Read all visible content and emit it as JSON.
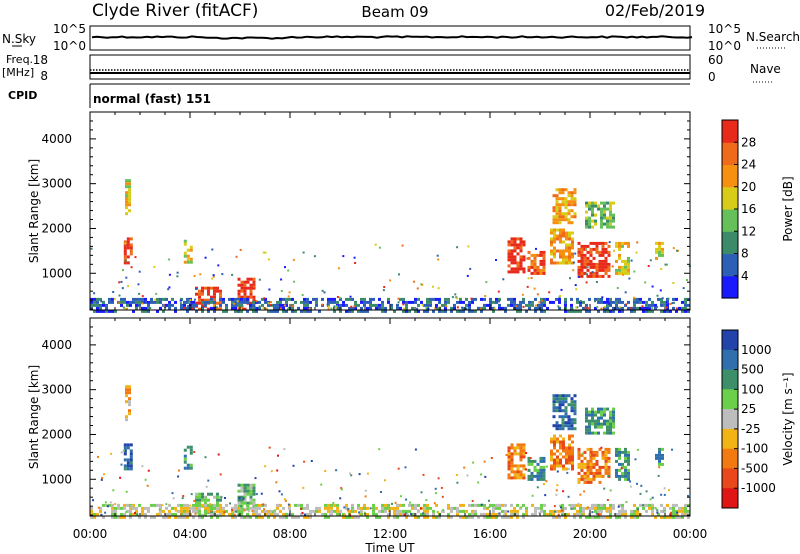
{
  "header": {
    "station": "Clyde River (fitACF)",
    "beam": "Beam 09",
    "date": "02/Feb/2019"
  },
  "panels": {
    "nsky": {
      "left_label": "N.Sky",
      "left_ticks": [
        "10^5",
        "10^0"
      ],
      "right_ticks": [
        "10^5",
        "10^0"
      ],
      "right_label": "N.Search"
    },
    "freq": {
      "left_label_1": "Freq.",
      "left_label_2": "[MHz]",
      "left_ticks": [
        "18",
        "8"
      ],
      "right_ticks": [
        "60",
        "0"
      ],
      "right_label": "Nave"
    },
    "cpid": {
      "label": "CPID",
      "mode": "normal (fast) 151"
    }
  },
  "chart_data": [
    {
      "type": "heatmap",
      "quantity": "Power",
      "ylabel": "Slant Range [km]",
      "xlabel": "Time UT",
      "ylim": [
        180,
        4600
      ],
      "yticks": [
        1000,
        2000,
        3000,
        4000
      ],
      "x_ticks": [
        "00:00",
        "04:00",
        "08:00",
        "12:00",
        "16:00",
        "20:00",
        "00:00"
      ],
      "colorbar": {
        "label": "Power [dB]",
        "ticks": [
          "4",
          "8",
          "12",
          "16",
          "20",
          "24",
          "28"
        ],
        "colors": [
          "#1a1aff",
          "#2c5fb5",
          "#3b8a6a",
          "#66c05a",
          "#d8cc18",
          "#f59010",
          "#ef6a1a",
          "#e82a1a"
        ]
      },
      "echo_regions": [
        {
          "t_start": 1.35,
          "t_end": 1.7,
          "range_min": 1200,
          "range_max": 1800,
          "level": 7
        },
        {
          "t_start": 1.4,
          "t_end": 1.6,
          "range_min": 2300,
          "range_max": 3100,
          "level": 4
        },
        {
          "t_start": 3.75,
          "t_end": 4.05,
          "range_min": 1250,
          "range_max": 1750,
          "level": 4
        },
        {
          "t_start": 4.2,
          "t_end": 5.2,
          "range_min": 180,
          "range_max": 700,
          "level": 7
        },
        {
          "t_start": 5.9,
          "t_end": 6.6,
          "range_min": 180,
          "range_max": 900,
          "level": 7
        },
        {
          "t_start": 16.7,
          "t_end": 17.4,
          "range_min": 1000,
          "range_max": 1800,
          "level": 7
        },
        {
          "t_start": 17.5,
          "t_end": 18.2,
          "range_min": 1000,
          "range_max": 1500,
          "level": 6
        },
        {
          "t_start": 18.5,
          "t_end": 19.4,
          "range_min": 2100,
          "range_max": 2900,
          "level": 5
        },
        {
          "t_start": 18.4,
          "t_end": 19.3,
          "range_min": 1200,
          "range_max": 2000,
          "level": 5
        },
        {
          "t_start": 19.5,
          "t_end": 20.8,
          "range_min": 900,
          "range_max": 1700,
          "level": 7
        },
        {
          "t_start": 19.8,
          "t_end": 20.9,
          "range_min": 2000,
          "range_max": 2600,
          "level": 3
        },
        {
          "t_start": 21.0,
          "t_end": 21.5,
          "range_min": 1000,
          "range_max": 1700,
          "level": 4
        },
        {
          "t_start": 22.6,
          "t_end": 22.9,
          "range_min": 1300,
          "range_max": 1700,
          "level": 4
        },
        {
          "t_start": 0.0,
          "t_end": 24.0,
          "range_min": 180,
          "range_max": 450,
          "level": 1
        }
      ]
    },
    {
      "type": "heatmap",
      "quantity": "Velocity",
      "ylabel": "Slant Range [km]",
      "xlabel": "Time UT",
      "ylim": [
        180,
        4600
      ],
      "yticks": [
        1000,
        2000,
        3000,
        4000
      ],
      "x_ticks": [
        "00:00",
        "04:00",
        "08:00",
        "12:00",
        "16:00",
        "20:00",
        "00:00"
      ],
      "colorbar": {
        "label": "Velocity [m s⁻¹]",
        "ticks": [
          "1000",
          "500",
          "100",
          "25",
          "-25",
          "-100",
          "-500",
          "-1000"
        ],
        "colors": [
          "#2244aa",
          "#2f6fae",
          "#3d8f6a",
          "#6ccf4a",
          "#bdbdbd",
          "#f2b317",
          "#f27a10",
          "#e8481a",
          "#e01616"
        ]
      },
      "echo_regions": [
        {
          "t_start": 1.35,
          "t_end": 1.7,
          "range_min": 1200,
          "range_max": 1800,
          "level": 1
        },
        {
          "t_start": 1.4,
          "t_end": 1.6,
          "range_min": 2300,
          "range_max": 3100,
          "level": 5
        },
        {
          "t_start": 3.75,
          "t_end": 4.05,
          "range_min": 1250,
          "range_max": 1750,
          "level": 2
        },
        {
          "t_start": 4.2,
          "t_end": 5.2,
          "range_min": 180,
          "range_max": 700,
          "level": 3
        },
        {
          "t_start": 5.9,
          "t_end": 6.6,
          "range_min": 180,
          "range_max": 900,
          "level": 3
        },
        {
          "t_start": 16.7,
          "t_end": 17.4,
          "range_min": 1000,
          "range_max": 1800,
          "level": 6
        },
        {
          "t_start": 17.5,
          "t_end": 18.2,
          "range_min": 1000,
          "range_max": 1500,
          "level": 2
        },
        {
          "t_start": 18.5,
          "t_end": 19.4,
          "range_min": 2100,
          "range_max": 2900,
          "level": 1
        },
        {
          "t_start": 18.4,
          "t_end": 19.3,
          "range_min": 1200,
          "range_max": 2000,
          "level": 6
        },
        {
          "t_start": 19.5,
          "t_end": 20.8,
          "range_min": 900,
          "range_max": 1700,
          "level": 6
        },
        {
          "t_start": 19.8,
          "t_end": 20.9,
          "range_min": 2000,
          "range_max": 2600,
          "level": 2
        },
        {
          "t_start": 21.0,
          "t_end": 21.5,
          "range_min": 1000,
          "range_max": 1700,
          "level": 2
        },
        {
          "t_start": 22.6,
          "t_end": 22.9,
          "range_min": 1300,
          "range_max": 1700,
          "level": 2
        },
        {
          "t_start": 0.0,
          "t_end": 24.0,
          "range_min": 180,
          "range_max": 450,
          "level": 4
        }
      ]
    }
  ]
}
